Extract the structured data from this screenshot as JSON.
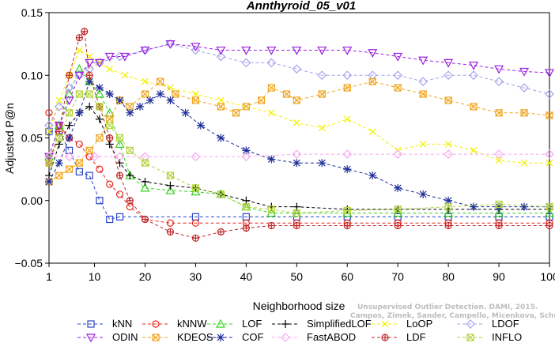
{
  "chart_data": {
    "type": "line",
    "title": "Annthyroid_05_v01",
    "xlabel": "Neighborhood size",
    "ylabel": "Adjusted P@n",
    "xlim": [
      1,
      100
    ],
    "ylim": [
      -0.05,
      0.15
    ],
    "xticks": [
      1,
      10,
      20,
      30,
      40,
      50,
      60,
      70,
      80,
      90,
      100
    ],
    "yticks": [
      -0.05,
      0.0,
      0.05,
      0.1,
      0.15
    ],
    "xtick_labels": [
      "1",
      "10",
      "20",
      "30",
      "40",
      "50",
      "60",
      "70",
      "80",
      "90",
      "100"
    ],
    "ytick_labels": [
      "−0.05",
      "0.00",
      "0.05",
      "0.10",
      "0.15"
    ],
    "grid": false,
    "legend_position": "bottom",
    "watermark": {
      "line1": "Unsupervised Outlier Detection. DAMI, 2015.",
      "line2": "Campos, Zimek, Sander, Campello, Micenkova, Schubert, Assent, Houle"
    },
    "series": [
      {
        "name": "kNN",
        "color": "#2b45c8",
        "marker": "square",
        "dash": "4,3",
        "points": [
          [
            1,
            0.055
          ],
          [
            3,
            0.055
          ],
          [
            5,
            0.04
          ],
          [
            7,
            0.023
          ],
          [
            9,
            0.02
          ],
          [
            11,
            0.0
          ],
          [
            13,
            -0.015
          ],
          [
            15,
            -0.013
          ],
          [
            30,
            -0.013
          ],
          [
            40,
            -0.013
          ],
          [
            50,
            -0.013
          ],
          [
            60,
            -0.013
          ],
          [
            70,
            -0.013
          ],
          [
            80,
            -0.013
          ],
          [
            90,
            -0.013
          ],
          [
            100,
            -0.013
          ]
        ]
      },
      {
        "name": "kNNW",
        "color": "#e8231c",
        "marker": "circle",
        "dash": "4,3",
        "points": [
          [
            1,
            0.07
          ],
          [
            3,
            0.06
          ],
          [
            5,
            0.05
          ],
          [
            7,
            0.045
          ],
          [
            9,
            0.035
          ],
          [
            11,
            0.025
          ],
          [
            13,
            0.013
          ],
          [
            15,
            0.005
          ],
          [
            17,
            -0.005
          ],
          [
            20,
            -0.015
          ],
          [
            25,
            -0.018
          ],
          [
            30,
            -0.018
          ],
          [
            40,
            -0.018
          ],
          [
            50,
            -0.018
          ],
          [
            60,
            -0.018
          ],
          [
            70,
            -0.018
          ],
          [
            80,
            -0.018
          ],
          [
            90,
            -0.018
          ],
          [
            100,
            -0.018
          ]
        ]
      },
      {
        "name": "LOF",
        "color": "#36d11f",
        "marker": "triangle",
        "dash": "4,3",
        "points": [
          [
            1,
            0.035
          ],
          [
            3,
            0.06
          ],
          [
            5,
            0.085
          ],
          [
            7,
            0.105
          ],
          [
            9,
            0.095
          ],
          [
            11,
            0.085
          ],
          [
            13,
            0.07
          ],
          [
            15,
            0.045
          ],
          [
            17,
            0.02
          ],
          [
            20,
            0.01
          ],
          [
            25,
            0.008
          ],
          [
            30,
            0.007
          ],
          [
            35,
            0.005
          ],
          [
            40,
            -0.005
          ],
          [
            45,
            -0.01
          ],
          [
            50,
            -0.01
          ],
          [
            60,
            -0.01
          ],
          [
            70,
            -0.01
          ],
          [
            80,
            -0.01
          ],
          [
            90,
            -0.01
          ],
          [
            100,
            -0.01
          ]
        ]
      },
      {
        "name": "SimplifiedLOF",
        "color": "#000000",
        "marker": "plus",
        "dash": "4,3",
        "points": [
          [
            1,
            0.02
          ],
          [
            3,
            0.045
          ],
          [
            5,
            0.06
          ],
          [
            7,
            0.07
          ],
          [
            9,
            0.075
          ],
          [
            11,
            0.065
          ],
          [
            13,
            0.045
          ],
          [
            15,
            0.03
          ],
          [
            17,
            0.02
          ],
          [
            20,
            0.015
          ],
          [
            25,
            0.012
          ],
          [
            30,
            0.01
          ],
          [
            35,
            0.005
          ],
          [
            40,
            0.0
          ],
          [
            45,
            -0.005
          ],
          [
            50,
            -0.005
          ],
          [
            60,
            -0.007
          ],
          [
            70,
            -0.007
          ],
          [
            80,
            -0.007
          ],
          [
            90,
            -0.007
          ],
          [
            100,
            -0.007
          ]
        ]
      },
      {
        "name": "LoOP",
        "color": "#f2f000",
        "marker": "x",
        "dash": "4,3",
        "points": [
          [
            1,
            0.055
          ],
          [
            3,
            0.08
          ],
          [
            5,
            0.1
          ],
          [
            7,
            0.12
          ],
          [
            9,
            0.115
          ],
          [
            11,
            0.11
          ],
          [
            13,
            0.105
          ],
          [
            16,
            0.1
          ],
          [
            20,
            0.095
          ],
          [
            25,
            0.09
          ],
          [
            30,
            0.085
          ],
          [
            35,
            0.08
          ],
          [
            40,
            0.075
          ],
          [
            45,
            0.07
          ],
          [
            50,
            0.062
          ],
          [
            55,
            0.058
          ],
          [
            60,
            0.065
          ],
          [
            65,
            0.055
          ],
          [
            70,
            0.04
          ],
          [
            75,
            0.045
          ],
          [
            80,
            0.045
          ],
          [
            85,
            0.04
          ],
          [
            90,
            0.032
          ],
          [
            95,
            0.03
          ],
          [
            100,
            0.03
          ]
        ]
      },
      {
        "name": "LDOF",
        "color": "#a3a3ee",
        "marker": "diamond",
        "dash": "4,3",
        "points": [
          [
            1,
            0.06
          ],
          [
            3,
            0.075
          ],
          [
            5,
            0.09
          ],
          [
            7,
            0.1
          ],
          [
            9,
            0.105
          ],
          [
            11,
            0.11
          ],
          [
            15,
            0.115
          ],
          [
            20,
            0.12
          ],
          [
            25,
            0.125
          ],
          [
            30,
            0.12
          ],
          [
            35,
            0.115
          ],
          [
            40,
            0.11
          ],
          [
            45,
            0.11
          ],
          [
            50,
            0.105
          ],
          [
            55,
            0.1
          ],
          [
            60,
            0.1
          ],
          [
            65,
            0.1
          ],
          [
            70,
            0.1
          ],
          [
            75,
            0.095
          ],
          [
            80,
            0.1
          ],
          [
            85,
            0.1
          ],
          [
            90,
            0.095
          ],
          [
            95,
            0.09
          ],
          [
            100,
            0.085
          ]
        ]
      },
      {
        "name": "ODIN",
        "color": "#9b1fe0",
        "marker": "invtriangle",
        "dash": "4,3",
        "points": [
          [
            1,
            0.035
          ],
          [
            3,
            0.06
          ],
          [
            5,
            0.08
          ],
          [
            7,
            0.1
          ],
          [
            9,
            0.11
          ],
          [
            11,
            0.11
          ],
          [
            13,
            0.115
          ],
          [
            16,
            0.115
          ],
          [
            20,
            0.12
          ],
          [
            25,
            0.125
          ],
          [
            30,
            0.123
          ],
          [
            35,
            0.12
          ],
          [
            40,
            0.12
          ],
          [
            45,
            0.12
          ],
          [
            50,
            0.12
          ],
          [
            55,
            0.12
          ],
          [
            60,
            0.12
          ],
          [
            65,
            0.118
          ],
          [
            70,
            0.115
          ],
          [
            75,
            0.112
          ],
          [
            80,
            0.11
          ],
          [
            85,
            0.108
          ],
          [
            90,
            0.105
          ],
          [
            95,
            0.103
          ],
          [
            100,
            0.102
          ]
        ]
      },
      {
        "name": "KDEOS",
        "color": "#f0a51e",
        "marker": "boxx",
        "dash": "4,3",
        "points": [
          [
            1,
            0.015
          ],
          [
            3,
            0.02
          ],
          [
            5,
            0.025
          ],
          [
            7,
            0.03
          ],
          [
            9,
            0.04
          ],
          [
            11,
            0.05
          ],
          [
            13,
            0.065
          ],
          [
            15,
            0.08
          ],
          [
            17,
            0.075
          ],
          [
            20,
            0.085
          ],
          [
            23,
            0.095
          ],
          [
            26,
            0.085
          ],
          [
            30,
            0.08
          ],
          [
            35,
            0.075
          ],
          [
            38,
            0.07
          ],
          [
            40,
            0.075
          ],
          [
            43,
            0.08
          ],
          [
            45,
            0.09
          ],
          [
            48,
            0.085
          ],
          [
            50,
            0.08
          ],
          [
            55,
            0.085
          ],
          [
            60,
            0.09
          ],
          [
            65,
            0.095
          ],
          [
            70,
            0.09
          ],
          [
            75,
            0.085
          ],
          [
            80,
            0.08
          ],
          [
            85,
            0.075
          ],
          [
            90,
            0.07
          ],
          [
            95,
            0.07
          ],
          [
            100,
            0.068
          ]
        ]
      },
      {
        "name": "COF",
        "color": "#1f2f9a",
        "marker": "star",
        "dash": "4,3",
        "points": [
          [
            1,
            0.015
          ],
          [
            3,
            0.03
          ],
          [
            5,
            0.05
          ],
          [
            7,
            0.07
          ],
          [
            9,
            0.095
          ],
          [
            11,
            0.09
          ],
          [
            13,
            0.085
          ],
          [
            15,
            0.08
          ],
          [
            17,
            0.07
          ],
          [
            19,
            0.075
          ],
          [
            21,
            0.08
          ],
          [
            23,
            0.085
          ],
          [
            25,
            0.08
          ],
          [
            28,
            0.07
          ],
          [
            31,
            0.06
          ],
          [
            35,
            0.05
          ],
          [
            40,
            0.04
          ],
          [
            45,
            0.033
          ],
          [
            50,
            0.03
          ],
          [
            55,
            0.03
          ],
          [
            60,
            0.025
          ],
          [
            65,
            0.02
          ],
          [
            70,
            0.01
          ],
          [
            75,
            0.005
          ],
          [
            80,
            0.0
          ],
          [
            85,
            -0.005
          ],
          [
            90,
            -0.005
          ],
          [
            95,
            -0.005
          ],
          [
            100,
            -0.005
          ]
        ]
      },
      {
        "name": "FastABOD",
        "color": "#f7a8ee",
        "marker": "diamond",
        "dash": "4,3",
        "points": [
          [
            1,
            0.035
          ],
          [
            5,
            0.035
          ],
          [
            10,
            0.035
          ],
          [
            15,
            0.035
          ],
          [
            20,
            0.035
          ],
          [
            30,
            0.035
          ],
          [
            40,
            0.035
          ],
          [
            50,
            0.037
          ],
          [
            60,
            0.037
          ],
          [
            70,
            0.037
          ],
          [
            80,
            0.037
          ],
          [
            90,
            0.037
          ],
          [
            100,
            0.037
          ]
        ]
      },
      {
        "name": "LDF",
        "color": "#c0282a",
        "marker": "circleplus",
        "dash": "4,3",
        "points": [
          [
            1,
            0.03
          ],
          [
            3,
            0.055
          ],
          [
            5,
            0.1
          ],
          [
            7,
            0.13
          ],
          [
            8,
            0.135
          ],
          [
            9,
            0.1
          ],
          [
            11,
            0.075
          ],
          [
            13,
            0.05
          ],
          [
            15,
            0.02
          ],
          [
            17,
            0.0
          ],
          [
            20,
            -0.015
          ],
          [
            25,
            -0.025
          ],
          [
            30,
            -0.03
          ],
          [
            35,
            -0.025
          ],
          [
            40,
            -0.022
          ],
          [
            45,
            -0.02
          ],
          [
            50,
            -0.02
          ],
          [
            60,
            -0.02
          ],
          [
            70,
            -0.02
          ],
          [
            80,
            -0.02
          ],
          [
            90,
            -0.02
          ],
          [
            100,
            -0.02
          ]
        ]
      },
      {
        "name": "INFLO",
        "color": "#b2d43a",
        "marker": "boxx2",
        "dash": "4,3",
        "points": [
          [
            1,
            0.03
          ],
          [
            3,
            0.05
          ],
          [
            5,
            0.07
          ],
          [
            7,
            0.085
          ],
          [
            9,
            0.085
          ],
          [
            11,
            0.075
          ],
          [
            13,
            0.06
          ],
          [
            15,
            0.05
          ],
          [
            17,
            0.04
          ],
          [
            20,
            0.03
          ],
          [
            25,
            0.02
          ],
          [
            30,
            0.01
          ],
          [
            35,
            0.005
          ],
          [
            40,
            -0.005
          ],
          [
            45,
            -0.007
          ],
          [
            50,
            -0.01
          ],
          [
            60,
            -0.008
          ],
          [
            70,
            -0.007
          ],
          [
            80,
            -0.005
          ],
          [
            90,
            -0.003
          ],
          [
            100,
            -0.005
          ]
        ]
      }
    ]
  }
}
